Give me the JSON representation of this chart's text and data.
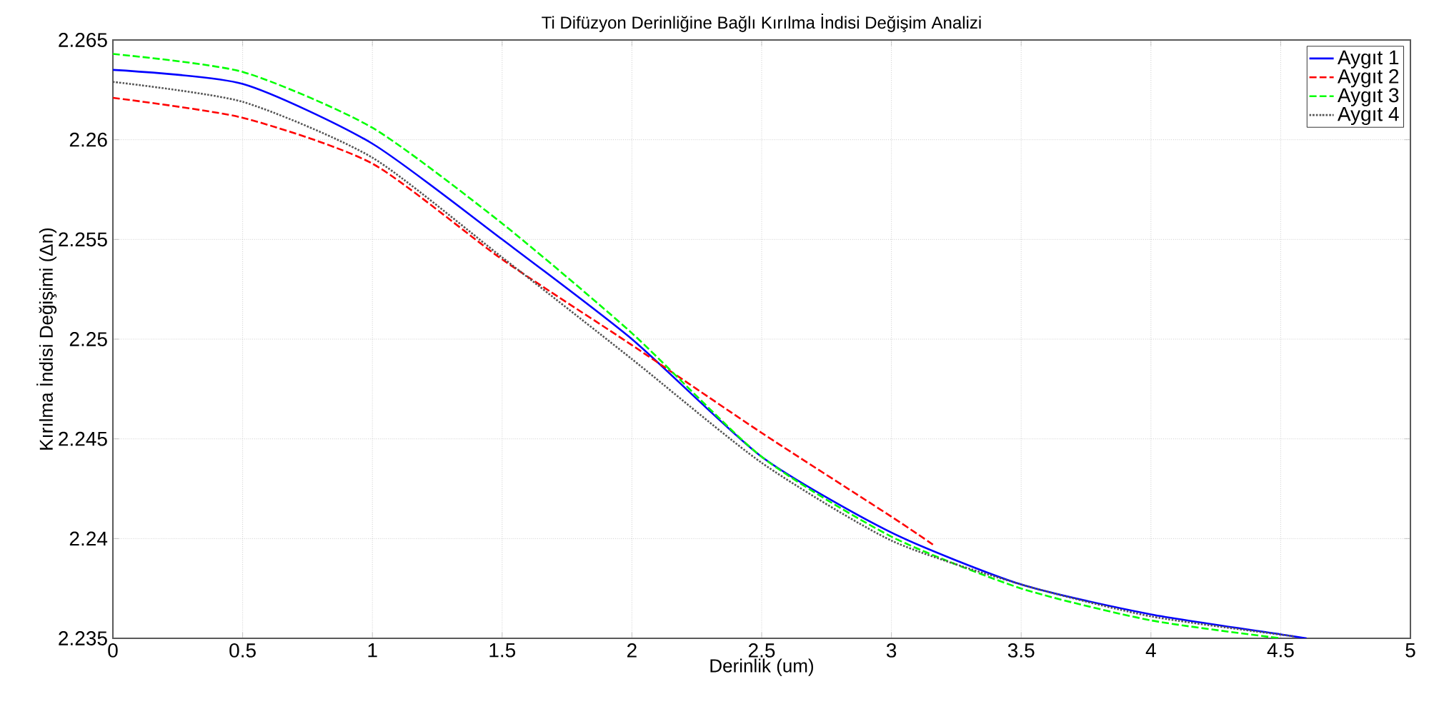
{
  "chart_data": {
    "type": "line",
    "title": "Ti Difüzyon Derinliğine Bağlı Kırılma İndisi Değişim Analizi",
    "xlabel": "Derinlik (um)",
    "ylabel": "Kırılma İndisi Değişimi (Δn)",
    "xlim": [
      0,
      5
    ],
    "ylim": [
      2.235,
      2.265
    ],
    "xticks": [
      0,
      0.5,
      1,
      1.5,
      2,
      2.5,
      3,
      3.5,
      4,
      4.5,
      5
    ],
    "yticks": [
      2.235,
      2.24,
      2.245,
      2.25,
      2.255,
      2.26,
      2.265
    ],
    "grid": true,
    "legend": "top right",
    "series": [
      {
        "name": "Aygıt 1",
        "color": "#0000ff",
        "line_style": "solid",
        "x": [
          0,
          0.5,
          1,
          1.5,
          2,
          2.5,
          3,
          3.5,
          4,
          4.5,
          4.6
        ],
        "values": [
          2.2635,
          2.2628,
          2.2598,
          2.255,
          2.25,
          2.2441,
          2.2403,
          2.2377,
          2.2362,
          2.2352,
          2.235
        ]
      },
      {
        "name": "Aygıt 2",
        "color": "#ff0000",
        "line_style": "dashed",
        "x": [
          0,
          0.5,
          1,
          1.5,
          2,
          2.5,
          3,
          3.16
        ],
        "values": [
          2.2621,
          2.2611,
          2.2588,
          2.254,
          2.2497,
          2.2453,
          2.2411,
          2.2397
        ]
      },
      {
        "name": "Aygıt 3",
        "color": "#00ff00",
        "line_style": "dashed",
        "x": [
          0,
          0.5,
          1,
          1.5,
          2,
          2.5,
          3,
          3.5,
          4,
          4.5
        ],
        "values": [
          2.2643,
          2.2634,
          2.2606,
          2.2558,
          2.2503,
          2.2441,
          2.2401,
          2.2375,
          2.2359,
          2.235
        ]
      },
      {
        "name": "Aygıt 4",
        "color": "#555555",
        "line_style": "dotted",
        "x": [
          0,
          0.5,
          1,
          1.5,
          2,
          2.5,
          3,
          3.5,
          4,
          4.55
        ],
        "values": [
          2.2629,
          2.2619,
          2.2591,
          2.2541,
          2.249,
          2.2438,
          2.2399,
          2.2377,
          2.2361,
          2.2351
        ]
      }
    ]
  }
}
